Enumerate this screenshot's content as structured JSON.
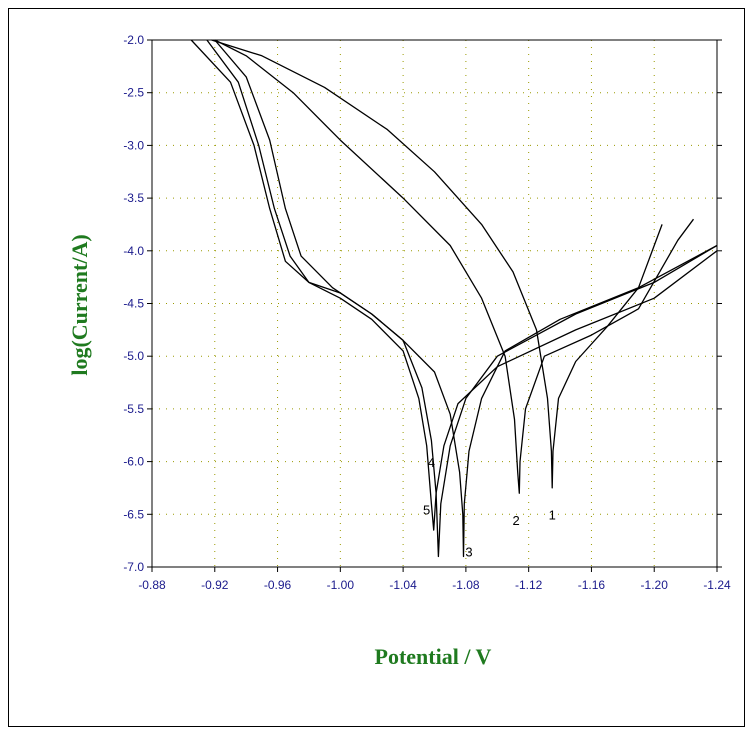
{
  "chart_data": {
    "type": "line",
    "title": "",
    "xlabel": "Potential / V",
    "ylabel": "log(Current/A)",
    "xlim": [
      -0.88,
      -1.24
    ],
    "ylim": [
      -7.0,
      -2.0
    ],
    "x_ticks": [
      "-0.88",
      "-0.92",
      "-0.96",
      "-1.00",
      "-1.04",
      "-1.08",
      "-1.12",
      "-1.16",
      "-1.20",
      "-1.24"
    ],
    "y_ticks": [
      "-2.0",
      "-2.5",
      "-3.0",
      "-3.5",
      "-4.0",
      "-4.5",
      "-5.0",
      "-5.5",
      "-6.0",
      "-6.5",
      "-7.0"
    ],
    "grid": true,
    "colors": {
      "axis_title": "#1f7a1f",
      "tick_label": "#1a1a8c",
      "grid": "#9a9a00",
      "curve": "#000000"
    },
    "series": [
      {
        "name": "1",
        "label_at": [
          -1.135,
          -6.55
        ],
        "points": [
          [
            -0.918,
            -2.0
          ],
          [
            -0.95,
            -2.15
          ],
          [
            -0.99,
            -2.45
          ],
          [
            -1.03,
            -2.85
          ],
          [
            -1.06,
            -3.25
          ],
          [
            -1.09,
            -3.75
          ],
          [
            -1.11,
            -4.2
          ],
          [
            -1.125,
            -4.75
          ],
          [
            -1.132,
            -5.4
          ],
          [
            -1.1345,
            -5.9
          ],
          [
            -1.135,
            -6.25
          ],
          [
            -1.1355,
            -5.9
          ],
          [
            -1.139,
            -5.4
          ],
          [
            -1.15,
            -5.05
          ],
          [
            -1.17,
            -4.72
          ],
          [
            -1.19,
            -4.35
          ],
          [
            -1.205,
            -3.75
          ]
        ]
      },
      {
        "name": "2",
        "label_at": [
          -1.112,
          -6.6
        ],
        "points": [
          [
            -0.92,
            -2.0
          ],
          [
            -0.94,
            -2.15
          ],
          [
            -0.97,
            -2.5
          ],
          [
            -1.0,
            -2.95
          ],
          [
            -1.04,
            -3.5
          ],
          [
            -1.07,
            -3.95
          ],
          [
            -1.09,
            -4.45
          ],
          [
            -1.105,
            -5.0
          ],
          [
            -1.111,
            -5.6
          ],
          [
            -1.113,
            -6.1
          ],
          [
            -1.114,
            -6.3
          ],
          [
            -1.1145,
            -6.0
          ],
          [
            -1.118,
            -5.5
          ],
          [
            -1.13,
            -5.0
          ],
          [
            -1.16,
            -4.8
          ],
          [
            -1.19,
            -4.55
          ],
          [
            -1.215,
            -3.9
          ],
          [
            -1.225,
            -3.7
          ]
        ]
      },
      {
        "name": "3",
        "label_at": [
          -1.082,
          -6.9
        ],
        "points": [
          [
            -0.92,
            -2.0
          ],
          [
            -0.94,
            -2.35
          ],
          [
            -0.955,
            -2.95
          ],
          [
            -0.965,
            -3.6
          ],
          [
            -0.975,
            -4.05
          ],
          [
            -0.995,
            -4.35
          ],
          [
            -1.02,
            -4.6
          ],
          [
            -1.04,
            -4.85
          ],
          [
            -1.06,
            -5.15
          ],
          [
            -1.07,
            -5.55
          ],
          [
            -1.076,
            -6.1
          ],
          [
            -1.078,
            -6.5
          ],
          [
            -1.0785,
            -6.9
          ],
          [
            -1.079,
            -6.4
          ],
          [
            -1.082,
            -5.9
          ],
          [
            -1.09,
            -5.4
          ],
          [
            -1.105,
            -4.95
          ],
          [
            -1.14,
            -4.65
          ],
          [
            -1.19,
            -4.35
          ],
          [
            -1.24,
            -3.95
          ]
        ]
      },
      {
        "name": "4",
        "label_at": [
          -1.058,
          -6.05
        ],
        "points": [
          [
            -0.915,
            -2.0
          ],
          [
            -0.935,
            -2.4
          ],
          [
            -0.948,
            -3.0
          ],
          [
            -0.958,
            -3.6
          ],
          [
            -0.968,
            -4.05
          ],
          [
            -0.98,
            -4.3
          ],
          [
            -1.0,
            -4.4
          ],
          [
            -1.02,
            -4.6
          ],
          [
            -1.04,
            -4.85
          ],
          [
            -1.052,
            -5.3
          ],
          [
            -1.058,
            -5.8
          ],
          [
            -1.061,
            -6.3
          ],
          [
            -1.0625,
            -6.9
          ],
          [
            -1.064,
            -6.4
          ],
          [
            -1.07,
            -5.85
          ],
          [
            -1.08,
            -5.4
          ],
          [
            -1.1,
            -5.0
          ],
          [
            -1.15,
            -4.6
          ],
          [
            -1.2,
            -4.3
          ],
          [
            -1.24,
            -3.95
          ]
        ]
      },
      {
        "name": "5",
        "label_at": [
          -1.055,
          -6.5
        ],
        "points": [
          [
            -0.905,
            -2.0
          ],
          [
            -0.93,
            -2.4
          ],
          [
            -0.945,
            -3.0
          ],
          [
            -0.955,
            -3.6
          ],
          [
            -0.965,
            -4.1
          ],
          [
            -0.98,
            -4.3
          ],
          [
            -1.0,
            -4.45
          ],
          [
            -1.02,
            -4.65
          ],
          [
            -1.04,
            -4.95
          ],
          [
            -1.05,
            -5.4
          ],
          [
            -1.055,
            -5.85
          ],
          [
            -1.058,
            -6.4
          ],
          [
            -1.0595,
            -6.65
          ],
          [
            -1.061,
            -6.3
          ],
          [
            -1.066,
            -5.85
          ],
          [
            -1.075,
            -5.45
          ],
          [
            -1.1,
            -5.1
          ],
          [
            -1.15,
            -4.75
          ],
          [
            -1.2,
            -4.45
          ],
          [
            -1.24,
            -4.0
          ]
        ]
      }
    ]
  }
}
